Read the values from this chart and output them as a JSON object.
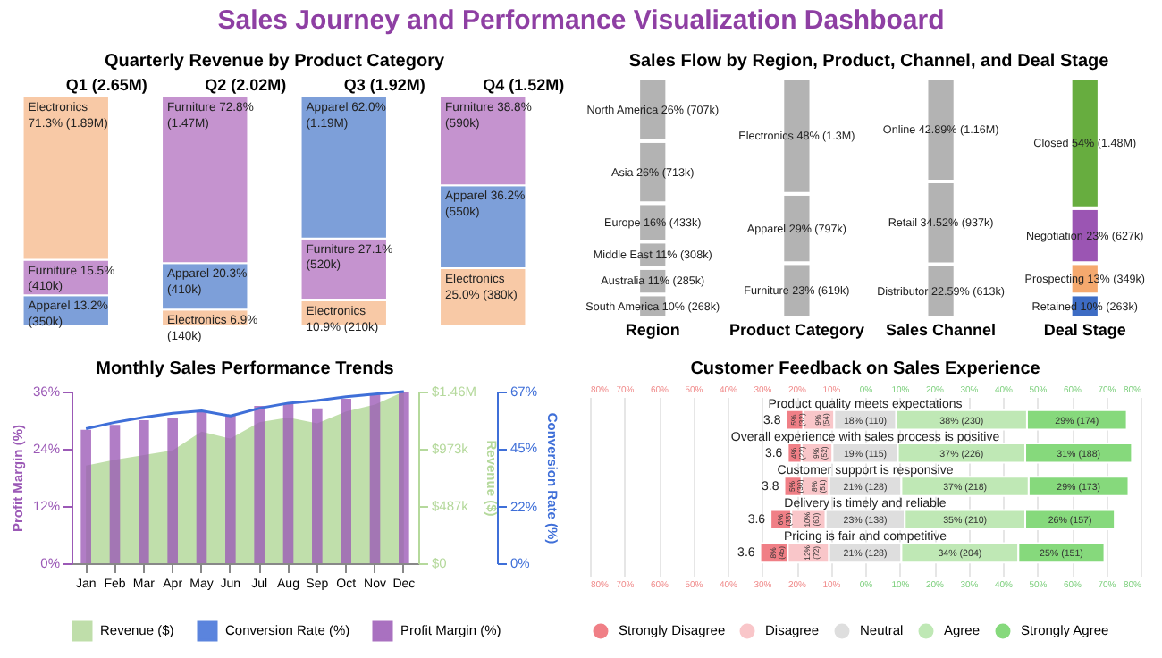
{
  "chart_data": [
    {
      "type": "bar",
      "title": "Sales Journey and Performance Visualization Dashboard",
      "subtitle": "Quarterly Revenue by Product Category",
      "stacked": true,
      "tick_labels": "x",
      "ylim": [
        0,
        100
      ],
      "categories": [
        "Q1 (2.65M)",
        "Q2 (2.02M)",
        "Q3 (1.92M)",
        "Q4 (1.52M)"
      ],
      "series": [
        {
          "color": "#7d9fd9",
          "values": [
            13.2,
            20.3,
            62.0,
            36.2
          ],
          "value_labels": [
            "Apparel 13.2%\n(350k)",
            "Apparel 20.3%\n(410k)",
            "Apparel 62.0%\n(1.19M)",
            "Apparel 36.2%\n(550k)"
          ]
        },
        {
          "color": "#c593cf",
          "values": [
            15.5,
            72.8,
            27.1,
            38.8
          ],
          "value_labels": [
            "Furniture 15.5%\n(410k)",
            "Furniture 72.8%\n(1.47M)",
            "Furniture 27.1%\n(520k)",
            "Furniture 38.8%\n(590k)"
          ]
        },
        {
          "color": "#f8c9a6",
          "values": [
            71.3,
            6.9,
            10.9,
            25.0
          ],
          "value_labels": [
            "Electronics\n71.3% (1.89M)",
            "Electronics 6.9%\n(140k)",
            "Electronics\n10.9% (210k)",
            "Electronics\n25.0% (380k)"
          ]
        }
      ]
    },
    {
      "type": "bar",
      "title": "Sales Flow by Region, Product, Channel, and Deal Stage",
      "stacked": true,
      "tick_labels": "x",
      "categories": [
        "Region",
        "Product Category",
        "Sales Channel",
        "Deal Stage"
      ],
      "series": [
        {
          "color": "#b3b3b3",
          "values": [
            10,
            null,
            null,
            null
          ],
          "value_labels": [
            "South America 10% (268k)",
            null,
            null,
            null
          ]
        },
        {
          "color": "#b3b3b3",
          "values": [
            11,
            null,
            null,
            null
          ],
          "value_labels": [
            "Australia 11% (285k)",
            null,
            null,
            null
          ]
        },
        {
          "color": "#b3b3b3",
          "values": [
            11,
            null,
            null,
            null
          ],
          "value_labels": [
            "Middle East 11% (308k)",
            null,
            null,
            null
          ]
        },
        {
          "color": "#b3b3b3",
          "values": [
            16,
            null,
            null,
            null
          ],
          "value_labels": [
            "Europe 16% (433k)",
            null,
            null,
            null
          ]
        },
        {
          "color": "#b3b3b3",
          "values": [
            26,
            null,
            null,
            null
          ],
          "value_labels": [
            "Asia 26% (713k)",
            null,
            null,
            null
          ]
        },
        {
          "color": "#b3b3b3",
          "values": [
            26,
            null,
            null,
            null
          ],
          "value_labels": [
            "North America 26% (707k)",
            null,
            null,
            null
          ]
        },
        {
          "color": "#b3b3b3",
          "values": [
            null,
            29,
            null,
            null
          ],
          "value_labels": [
            null,
            "Apparel 29% (797k)",
            null,
            null
          ]
        },
        {
          "color": "#b3b3b3",
          "values": [
            null,
            48,
            null,
            null
          ],
          "value_labels": [
            null,
            "Electronics 48% (1.3M)",
            null,
            null
          ]
        },
        {
          "color": "#b3b3b3",
          "values": [
            null,
            23,
            null,
            null
          ],
          "value_labels": [
            null,
            "Furniture 23% (619k)",
            null,
            null
          ]
        },
        {
          "color": "#b3b3b3",
          "values": [
            null,
            null,
            22.59,
            null
          ],
          "value_labels": [
            null,
            null,
            "Distributor 22.59% (613k)",
            null
          ]
        },
        {
          "color": "#b3b3b3",
          "values": [
            null,
            null,
            34.52,
            null
          ],
          "value_labels": [
            null,
            null,
            "Retail 34.52% (937k)",
            null
          ]
        },
        {
          "color": "#b3b3b3",
          "values": [
            null,
            null,
            42.89,
            null
          ],
          "value_labels": [
            null,
            null,
            "Online 42.89% (1.16M)",
            null
          ]
        },
        {
          "color": "#3d6cc4",
          "values": [
            null,
            null,
            null,
            10
          ],
          "value_labels": [
            null,
            null,
            null,
            "Retained 10% (263k)"
          ]
        },
        {
          "color": "#9b55b3",
          "values": [
            null,
            null,
            null,
            23
          ],
          "value_labels": [
            null,
            null,
            null,
            "Negotiation 23% (627k)"
          ]
        },
        {
          "color": "#f5a96e",
          "values": [
            null,
            null,
            null,
            13
          ],
          "value_labels": [
            null,
            null,
            null,
            "Prospecting 13% (349k)"
          ]
        },
        {
          "color": "#67ad3f",
          "values": [
            null,
            null,
            null,
            54
          ],
          "value_labels": [
            null,
            null,
            null,
            "Closed 54% (1.48M)"
          ]
        }
      ]
    },
    {
      "type": "bar",
      "title": "Monthly Sales Performance Trends",
      "categories": [
        "Jan",
        "Feb",
        "Mar",
        "Apr",
        "May",
        "Jun",
        "Jul",
        "Aug",
        "Sep",
        "Oct",
        "Nov",
        "Dec"
      ],
      "ylabel": "Profit Margin (%)",
      "y2label": "Revenue ($)",
      "y3label": "Conversion Rate (%)",
      "legend": "bottom",
      "ylim": [
        0,
        36
      ],
      "yticks": [
        {
          "value": 0,
          "label": "0%"
        },
        {
          "value": 12,
          "label": "12%"
        },
        {
          "value": 24,
          "label": "24%"
        },
        {
          "value": 36,
          "label": "36%"
        }
      ],
      "y2lim": [
        0,
        1460000
      ],
      "y2ticks": [
        {
          "value": 0,
          "label": "$0"
        },
        {
          "value": 487000,
          "label": "$487k"
        },
        {
          "value": 973000,
          "label": "$973k"
        },
        {
          "value": 1460000,
          "label": "$1.46M"
        }
      ],
      "y3lim": [
        0,
        67
      ],
      "y3ticks": [
        {
          "value": 0,
          "label": "0%"
        },
        {
          "value": 22,
          "label": "22%"
        },
        {
          "value": 45,
          "label": "45%"
        },
        {
          "value": 67,
          "label": "67%"
        }
      ],
      "series": [
        {
          "name": "Revenue ($)",
          "type": "area",
          "axis": "y2",
          "color": "#b5d99c",
          "values": [
            830000,
            880000,
            920000,
            960000,
            1120000,
            1060000,
            1200000,
            1240000,
            1190000,
            1290000,
            1350000,
            1460000
          ]
        },
        {
          "name": "Conversion Rate (%)",
          "type": "line",
          "axis": "y3",
          "color": "#3f6fd8",
          "values": [
            52.5,
            55,
            57,
            58.5,
            59.5,
            57.5,
            60.5,
            62.5,
            63.5,
            65,
            66,
            67
          ]
        },
        {
          "name": "Profit Margin (%)",
          "type": "bar",
          "color": "#9b59b6",
          "values": [
            28,
            29,
            30,
            30.5,
            32,
            31,
            33,
            33.5,
            32.5,
            34.5,
            35.5,
            36
          ]
        }
      ]
    },
    {
      "type": "bar",
      "orientation": "horizontal",
      "title": "Customer Feedback on Sales Experience",
      "legend": "bottom",
      "grid": "x",
      "categories": [
        "Product quality meets expectations",
        "Overall experience with sales process is positive",
        "Customer support is responsive",
        "Delivery is timely and reliable",
        "Pricing is fair and competitive"
      ],
      "xlim": [
        -80,
        80
      ],
      "xticks": [
        {
          "value": -80,
          "label": "80%"
        },
        {
          "value": -70,
          "label": "70%"
        },
        {
          "value": -60,
          "label": "60%"
        },
        {
          "value": -50,
          "label": "50%"
        },
        {
          "value": -40,
          "label": "40%"
        },
        {
          "value": -30,
          "label": "30%"
        },
        {
          "value": -20,
          "label": "20%"
        },
        {
          "value": -10,
          "label": "10%"
        },
        {
          "value": 0,
          "label": "0%"
        },
        {
          "value": 10,
          "label": "10%"
        },
        {
          "value": 20,
          "label": "20%"
        },
        {
          "value": 30,
          "label": "30%"
        },
        {
          "value": 40,
          "label": "40%"
        },
        {
          "value": 50,
          "label": "50%"
        },
        {
          "value": 60,
          "label": "60%"
        },
        {
          "value": 70,
          "label": "70%"
        },
        {
          "value": 80,
          "label": "80%"
        }
      ],
      "x2lim": [
        -80,
        80
      ],
      "x2ticks": [
        {
          "value": -80,
          "label": "80%"
        },
        {
          "value": -70,
          "label": "70%"
        },
        {
          "value": -60,
          "label": "60%"
        },
        {
          "value": -50,
          "label": "50%"
        },
        {
          "value": -40,
          "label": "40%"
        },
        {
          "value": -30,
          "label": "30%"
        },
        {
          "value": -20,
          "label": "20%"
        },
        {
          "value": -10,
          "label": "10%"
        },
        {
          "value": 0,
          "label": "0%"
        },
        {
          "value": 10,
          "label": "10%"
        },
        {
          "value": 20,
          "label": "20%"
        },
        {
          "value": 30,
          "label": "30%"
        },
        {
          "value": 40,
          "label": "40%"
        },
        {
          "value": 50,
          "label": "50%"
        },
        {
          "value": 60,
          "label": "60%"
        },
        {
          "value": 70,
          "label": "70%"
        },
        {
          "value": 80,
          "label": "80%"
        }
      ],
      "annotations": [
        "3.8",
        "3.6",
        "3.8",
        "3.6",
        "3.6"
      ],
      "series": [
        {
          "name": "Strongly Disagree",
          "color": "#f07f86",
          "base": [
            -23,
            -22.5,
            -23.5,
            -27.5,
            -30.5
          ],
          "values": [
            5,
            4,
            5,
            6,
            8
          ],
          "value_labels": [
            "5% (32)",
            "4% (22)",
            "5% (30)",
            "6% (35)",
            "8% (45)"
          ]
        },
        {
          "name": "Disagree",
          "color": "#f9c6c9",
          "base": [
            -18,
            -18.5,
            -18.5,
            -21.5,
            -22.5
          ],
          "values": [
            9,
            9,
            8,
            10,
            12
          ],
          "value_labels": [
            "9% (54)",
            "9% (52)",
            "8% (51)",
            "10% (60)",
            "12% (72)"
          ]
        },
        {
          "name": "Neutral",
          "color": "#dedede",
          "base": [
            -9,
            -9.5,
            -10.5,
            -11.5,
            -10.5
          ],
          "values": [
            18,
            19,
            21,
            23,
            21
          ],
          "value_labels": [
            "18% (110)",
            "19% (115)",
            "21% (128)",
            "23% (138)",
            "21% (128)"
          ]
        },
        {
          "name": "Agree",
          "color": "#bfe8b5",
          "base": [
            9,
            9.5,
            10.5,
            11.5,
            10.5
          ],
          "values": [
            38,
            37,
            37,
            35,
            34
          ],
          "value_labels": [
            "38% (230)",
            "37% (226)",
            "37% (218)",
            "35% (210)",
            "34% (204)"
          ]
        },
        {
          "name": "Strongly Agree",
          "color": "#86d97c",
          "base": [
            47,
            46.5,
            47.5,
            46.5,
            44.5
          ],
          "values": [
            29,
            31,
            29,
            26,
            25
          ],
          "value_labels": [
            "29% (174)",
            "31% (188)",
            "29% (173)",
            "26% (157)",
            "25% (151)"
          ]
        }
      ]
    }
  ]
}
